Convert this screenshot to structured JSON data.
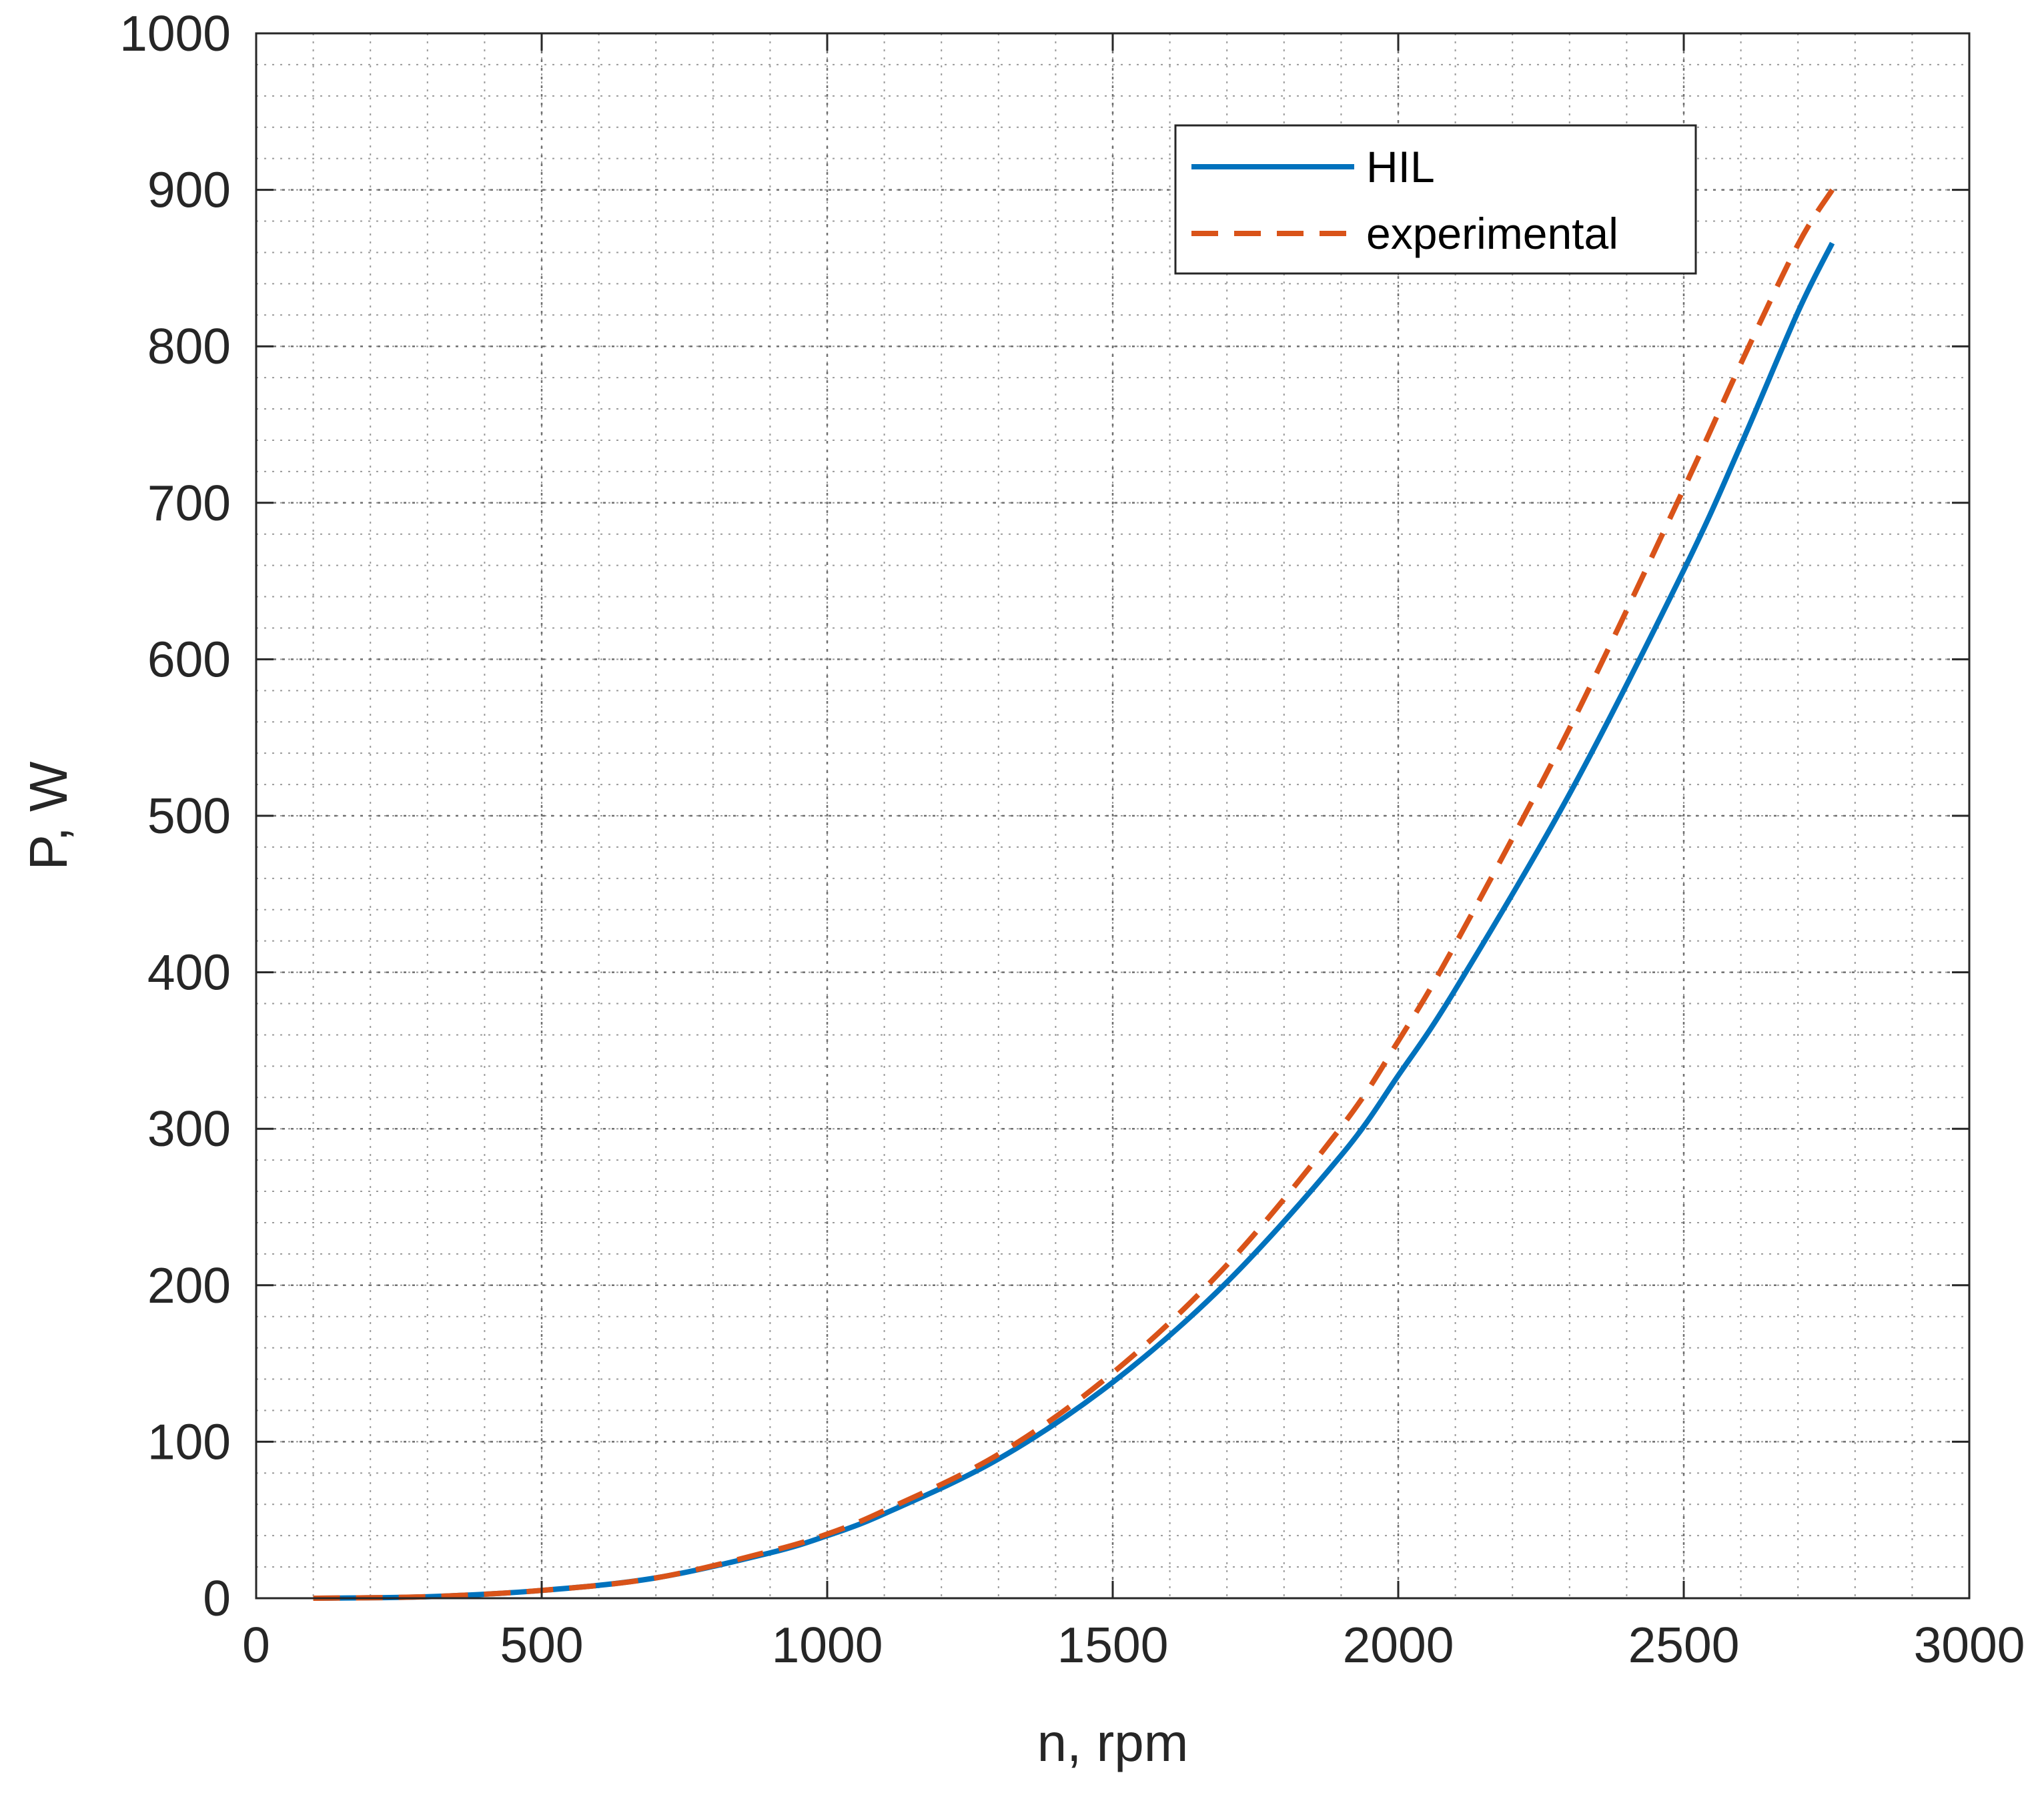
{
  "chart_data": {
    "type": "line",
    "title": "",
    "xlabel": "n, rpm",
    "ylabel": "P, W",
    "xlim": [
      0,
      3000
    ],
    "ylim": [
      0,
      1000
    ],
    "xticks": [
      0,
      500,
      1000,
      1500,
      2000,
      2500,
      3000
    ],
    "yticks": [
      0,
      100,
      200,
      300,
      400,
      500,
      600,
      700,
      800,
      900,
      1000
    ],
    "grid": "major and minor, dotted",
    "legend_position": "top-right",
    "series": [
      {
        "name": "HIL",
        "color": "#0072BD",
        "style": "solid",
        "x": [
          100,
          300,
          500,
          700,
          900,
          1000,
          1100,
          1300,
          1500,
          1700,
          1900,
          2000,
          2100,
          2300,
          2500,
          2600,
          2700,
          2760
        ],
        "y": [
          0,
          1,
          5,
          13,
          29,
          40,
          54,
          89,
          138,
          202,
          283,
          334,
          389,
          514,
          657,
          737,
          822,
          866
        ]
      },
      {
        "name": "experimental",
        "color": "#D95319",
        "style": "dashed",
        "x": [
          100,
          300,
          500,
          700,
          900,
          1000,
          1100,
          1300,
          1500,
          1700,
          1900,
          2000,
          2100,
          2300,
          2500,
          2600,
          2700,
          2760
        ],
        "y": [
          0,
          1,
          5,
          13,
          30,
          41,
          56,
          92,
          144,
          213,
          301,
          356,
          418,
          556,
          709,
          789,
          865,
          900
        ]
      }
    ]
  }
}
